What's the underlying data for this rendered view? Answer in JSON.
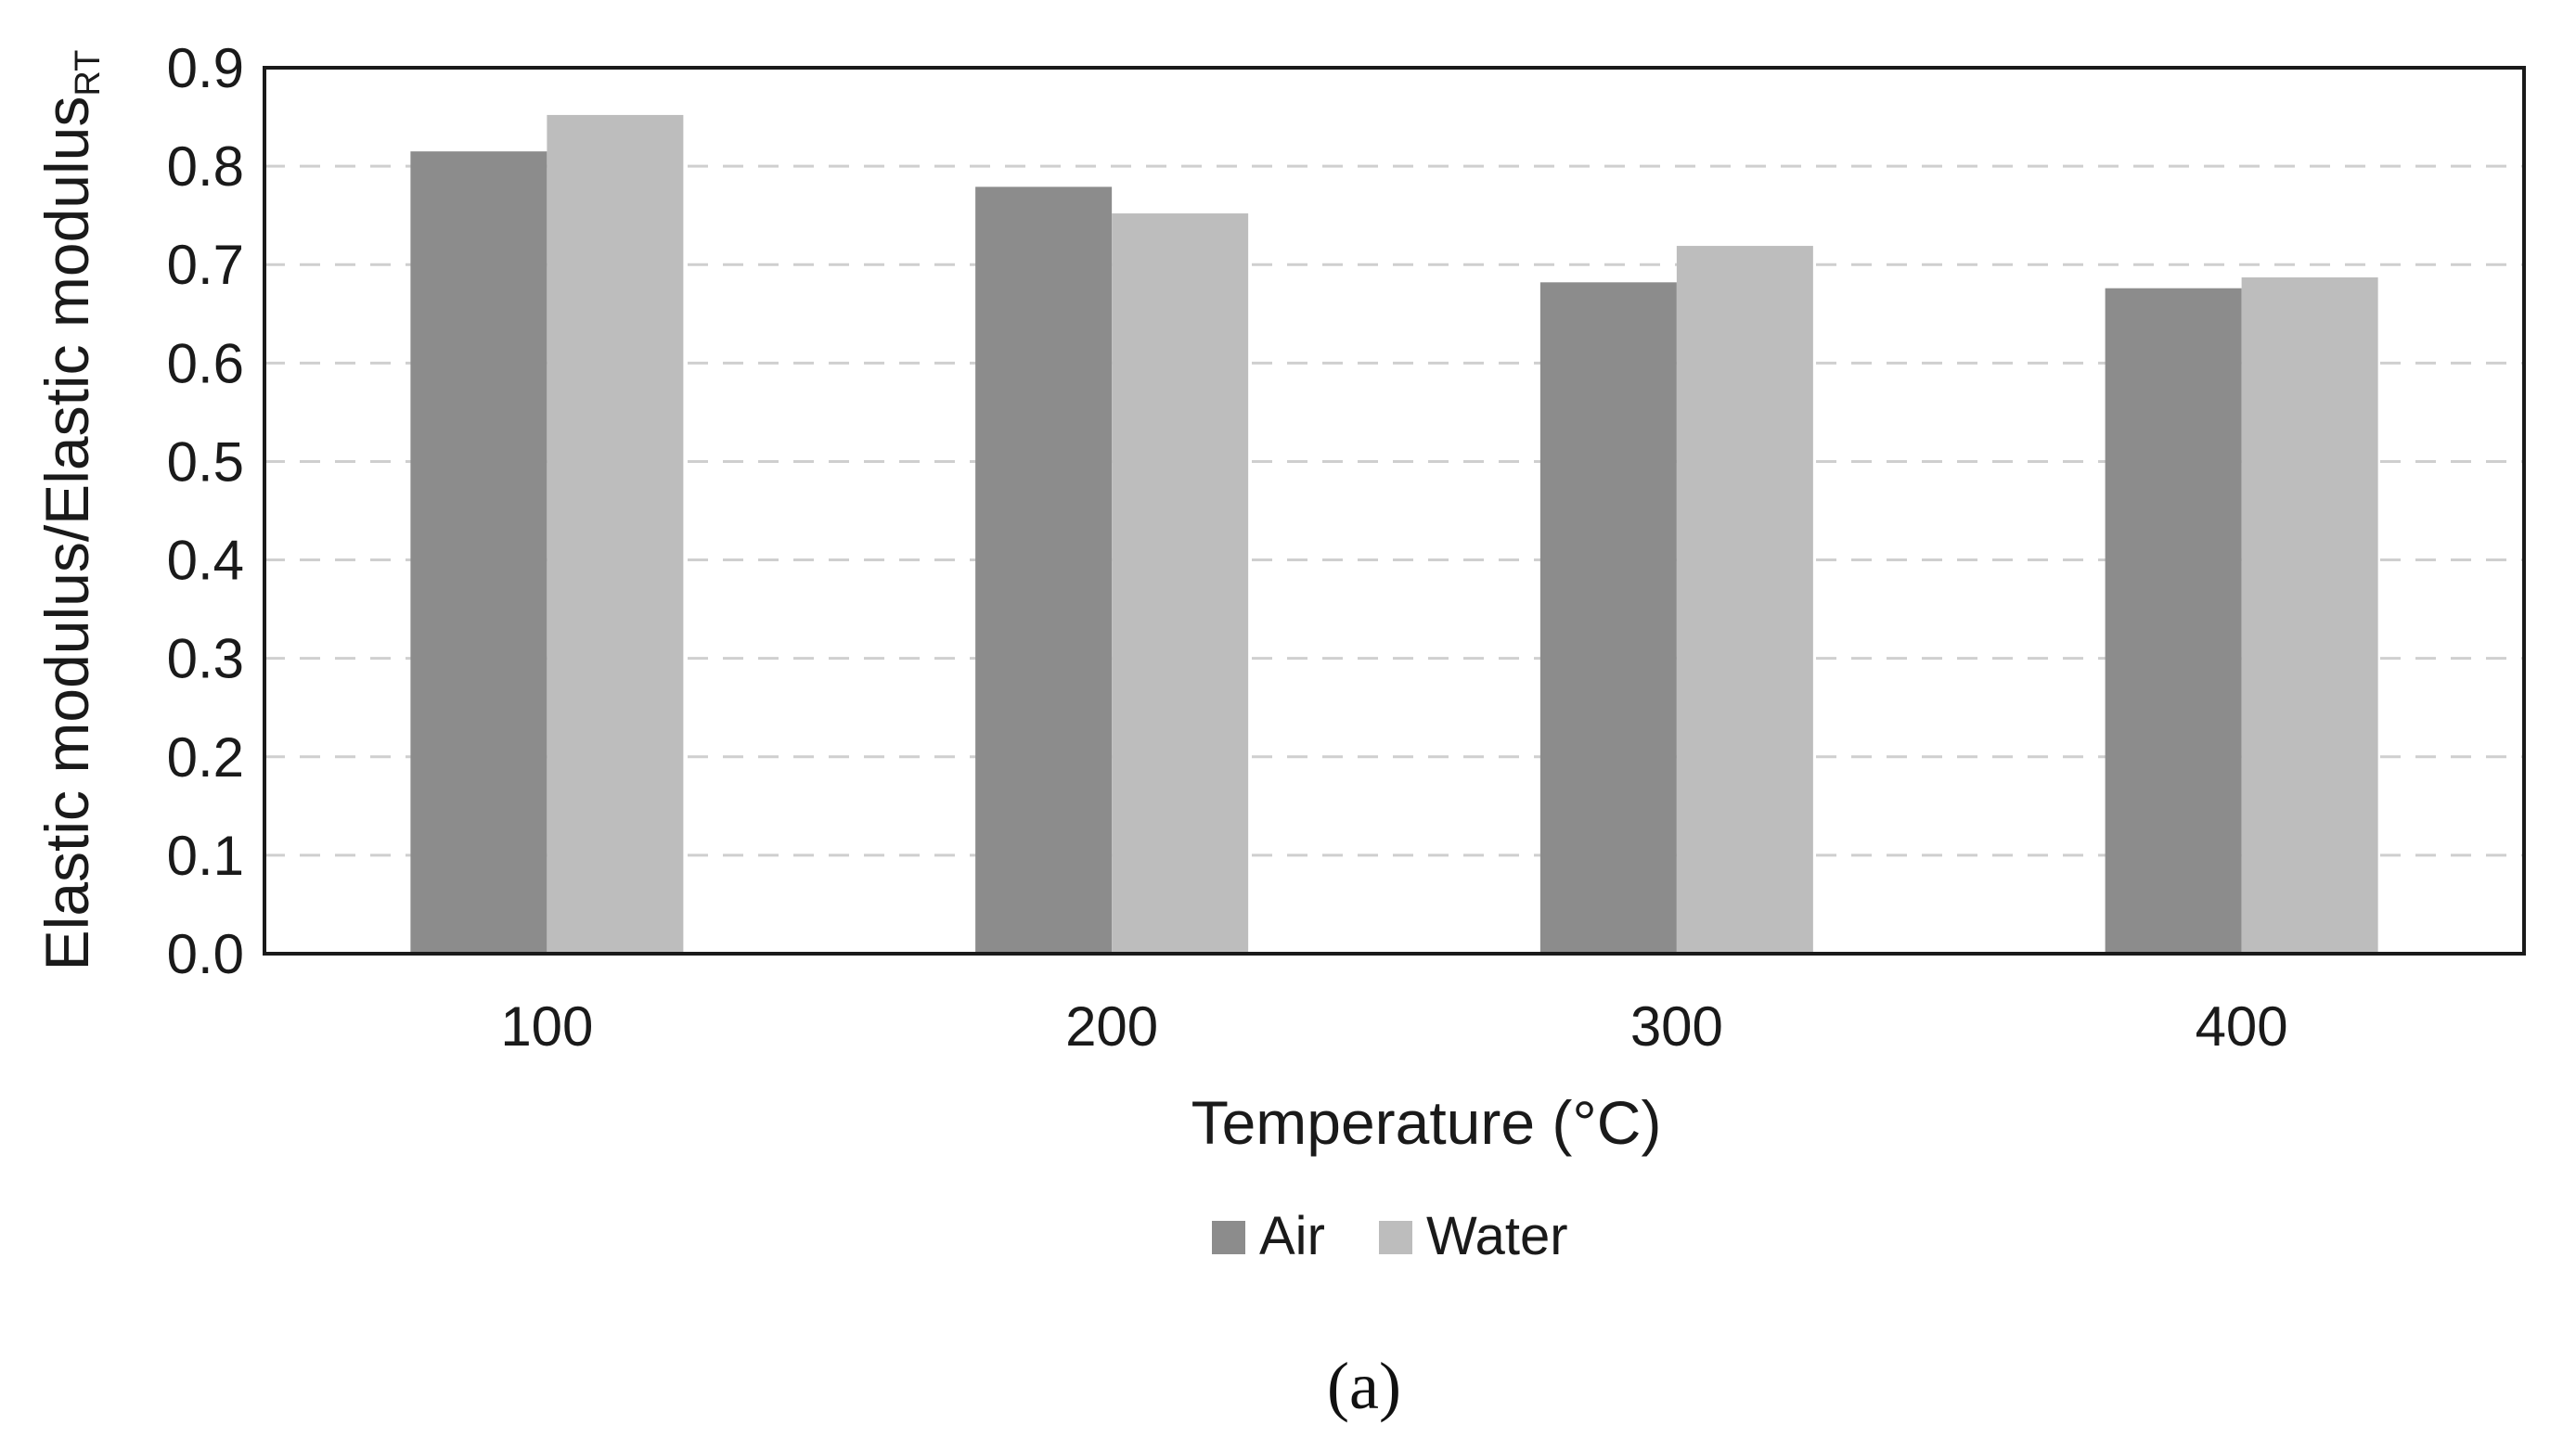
{
  "chart_data": {
    "type": "bar",
    "title": "",
    "xlabel": "Temperature (°C)",
    "ylabel": "Elastic modulus/Elastic modulus",
    "ylabel_subscript": "RT",
    "categories": [
      "100",
      "200",
      "300",
      "400"
    ],
    "series": [
      {
        "name": "Air",
        "values": [
          0.815,
          0.779,
          0.682,
          0.676
        ],
        "color": "#8c8c8c"
      },
      {
        "name": "Water",
        "values": [
          0.852,
          0.752,
          0.719,
          0.687
        ],
        "color": "#bdbdbd"
      }
    ],
    "ylim": [
      0,
      0.9
    ],
    "yticks": [
      "0.0",
      "0.1",
      "0.2",
      "0.3",
      "0.4",
      "0.5",
      "0.6",
      "0.7",
      "0.8",
      "0.9"
    ],
    "grid": true,
    "legend_position": "bottom-center"
  },
  "caption": "(a)"
}
